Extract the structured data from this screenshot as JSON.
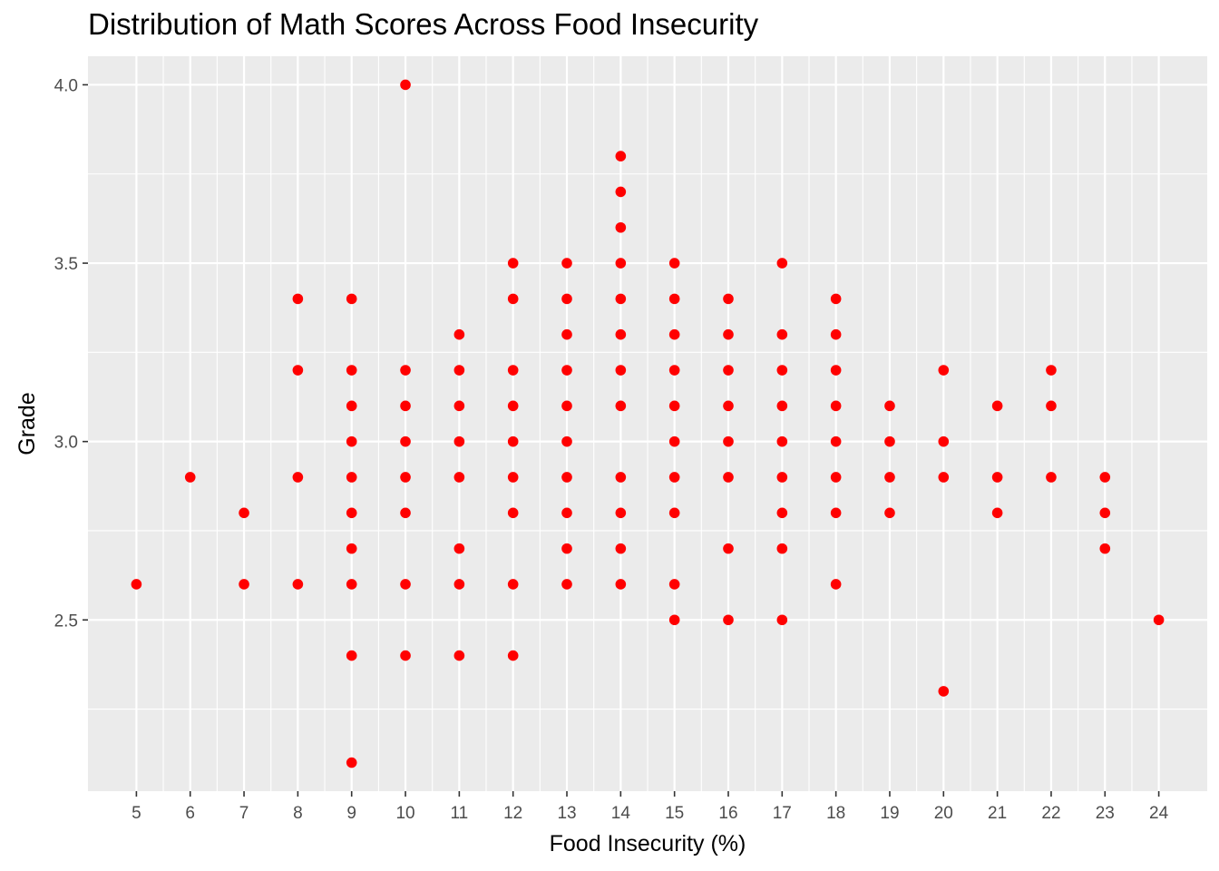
{
  "chart_data": {
    "type": "scatter",
    "title": "Distribution of Math Scores Across Food Insecurity",
    "xlabel": "Food Insecurity (%)",
    "ylabel": "Grade",
    "xlim": [
      4.1,
      24.9
    ],
    "ylim": [
      2.02,
      4.08
    ],
    "x_ticks": [
      5,
      6,
      7,
      8,
      9,
      10,
      11,
      12,
      13,
      14,
      15,
      16,
      17,
      18,
      19,
      20,
      21,
      22,
      23,
      24
    ],
    "y_ticks": [
      2.5,
      3.0,
      3.5,
      4.0
    ],
    "y_tick_labels": [
      "2.5",
      "3.0",
      "3.5",
      "4.0"
    ],
    "grid": true,
    "point_color": "#ff0000",
    "panel_color": "#ebebeb",
    "grid_color": "#ffffff",
    "points": [
      {
        "x": 5,
        "y": 2.6
      },
      {
        "x": 6,
        "y": 2.9
      },
      {
        "x": 7,
        "y": 2.8
      },
      {
        "x": 7,
        "y": 2.6
      },
      {
        "x": 8,
        "y": 3.4
      },
      {
        "x": 8,
        "y": 3.2
      },
      {
        "x": 8,
        "y": 2.9
      },
      {
        "x": 8,
        "y": 2.6
      },
      {
        "x": 9,
        "y": 3.4
      },
      {
        "x": 9,
        "y": 3.2
      },
      {
        "x": 9,
        "y": 3.1
      },
      {
        "x": 9,
        "y": 3.0
      },
      {
        "x": 9,
        "y": 2.9
      },
      {
        "x": 9,
        "y": 2.8
      },
      {
        "x": 9,
        "y": 2.7
      },
      {
        "x": 9,
        "y": 2.6
      },
      {
        "x": 9,
        "y": 2.4
      },
      {
        "x": 9,
        "y": 2.1
      },
      {
        "x": 10,
        "y": 4.0
      },
      {
        "x": 10,
        "y": 3.2
      },
      {
        "x": 10,
        "y": 3.1
      },
      {
        "x": 10,
        "y": 3.0
      },
      {
        "x": 10,
        "y": 2.9
      },
      {
        "x": 10,
        "y": 2.8
      },
      {
        "x": 10,
        "y": 2.6
      },
      {
        "x": 10,
        "y": 2.4
      },
      {
        "x": 11,
        "y": 3.3
      },
      {
        "x": 11,
        "y": 3.2
      },
      {
        "x": 11,
        "y": 3.1
      },
      {
        "x": 11,
        "y": 3.0
      },
      {
        "x": 11,
        "y": 2.9
      },
      {
        "x": 11,
        "y": 2.7
      },
      {
        "x": 11,
        "y": 2.6
      },
      {
        "x": 11,
        "y": 2.4
      },
      {
        "x": 12,
        "y": 3.5
      },
      {
        "x": 12,
        "y": 3.4
      },
      {
        "x": 12,
        "y": 3.2
      },
      {
        "x": 12,
        "y": 3.1
      },
      {
        "x": 12,
        "y": 3.0
      },
      {
        "x": 12,
        "y": 2.9
      },
      {
        "x": 12,
        "y": 2.8
      },
      {
        "x": 12,
        "y": 2.6
      },
      {
        "x": 12,
        "y": 2.4
      },
      {
        "x": 13,
        "y": 3.5
      },
      {
        "x": 13,
        "y": 3.4
      },
      {
        "x": 13,
        "y": 3.3
      },
      {
        "x": 13,
        "y": 3.2
      },
      {
        "x": 13,
        "y": 3.1
      },
      {
        "x": 13,
        "y": 3.0
      },
      {
        "x": 13,
        "y": 2.9
      },
      {
        "x": 13,
        "y": 2.8
      },
      {
        "x": 13,
        "y": 2.7
      },
      {
        "x": 13,
        "y": 2.6
      },
      {
        "x": 14,
        "y": 3.8
      },
      {
        "x": 14,
        "y": 3.7
      },
      {
        "x": 14,
        "y": 3.6
      },
      {
        "x": 14,
        "y": 3.5
      },
      {
        "x": 14,
        "y": 3.4
      },
      {
        "x": 14,
        "y": 3.3
      },
      {
        "x": 14,
        "y": 3.2
      },
      {
        "x": 14,
        "y": 3.1
      },
      {
        "x": 14,
        "y": 2.9
      },
      {
        "x": 14,
        "y": 2.8
      },
      {
        "x": 14,
        "y": 2.7
      },
      {
        "x": 14,
        "y": 2.6
      },
      {
        "x": 15,
        "y": 3.5
      },
      {
        "x": 15,
        "y": 3.4
      },
      {
        "x": 15,
        "y": 3.3
      },
      {
        "x": 15,
        "y": 3.2
      },
      {
        "x": 15,
        "y": 3.1
      },
      {
        "x": 15,
        "y": 3.0
      },
      {
        "x": 15,
        "y": 2.9
      },
      {
        "x": 15,
        "y": 2.8
      },
      {
        "x": 15,
        "y": 2.6
      },
      {
        "x": 15,
        "y": 2.5
      },
      {
        "x": 16,
        "y": 3.4
      },
      {
        "x": 16,
        "y": 3.3
      },
      {
        "x": 16,
        "y": 3.2
      },
      {
        "x": 16,
        "y": 3.1
      },
      {
        "x": 16,
        "y": 3.0
      },
      {
        "x": 16,
        "y": 2.9
      },
      {
        "x": 16,
        "y": 2.7
      },
      {
        "x": 16,
        "y": 2.5
      },
      {
        "x": 17,
        "y": 3.5
      },
      {
        "x": 17,
        "y": 3.3
      },
      {
        "x": 17,
        "y": 3.2
      },
      {
        "x": 17,
        "y": 3.1
      },
      {
        "x": 17,
        "y": 3.0
      },
      {
        "x": 17,
        "y": 2.9
      },
      {
        "x": 17,
        "y": 2.8
      },
      {
        "x": 17,
        "y": 2.7
      },
      {
        "x": 17,
        "y": 2.5
      },
      {
        "x": 18,
        "y": 3.4
      },
      {
        "x": 18,
        "y": 3.3
      },
      {
        "x": 18,
        "y": 3.2
      },
      {
        "x": 18,
        "y": 3.1
      },
      {
        "x": 18,
        "y": 3.0
      },
      {
        "x": 18,
        "y": 2.9
      },
      {
        "x": 18,
        "y": 2.8
      },
      {
        "x": 18,
        "y": 2.6
      },
      {
        "x": 19,
        "y": 3.1
      },
      {
        "x": 19,
        "y": 3.0
      },
      {
        "x": 19,
        "y": 2.9
      },
      {
        "x": 19,
        "y": 2.8
      },
      {
        "x": 20,
        "y": 3.2
      },
      {
        "x": 20,
        "y": 3.0
      },
      {
        "x": 20,
        "y": 2.9
      },
      {
        "x": 20,
        "y": 2.3
      },
      {
        "x": 21,
        "y": 3.1
      },
      {
        "x": 21,
        "y": 2.9
      },
      {
        "x": 21,
        "y": 2.8
      },
      {
        "x": 22,
        "y": 3.2
      },
      {
        "x": 22,
        "y": 3.1
      },
      {
        "x": 22,
        "y": 2.9
      },
      {
        "x": 23,
        "y": 2.9
      },
      {
        "x": 23,
        "y": 2.8
      },
      {
        "x": 23,
        "y": 2.7
      },
      {
        "x": 24,
        "y": 2.5
      }
    ]
  }
}
